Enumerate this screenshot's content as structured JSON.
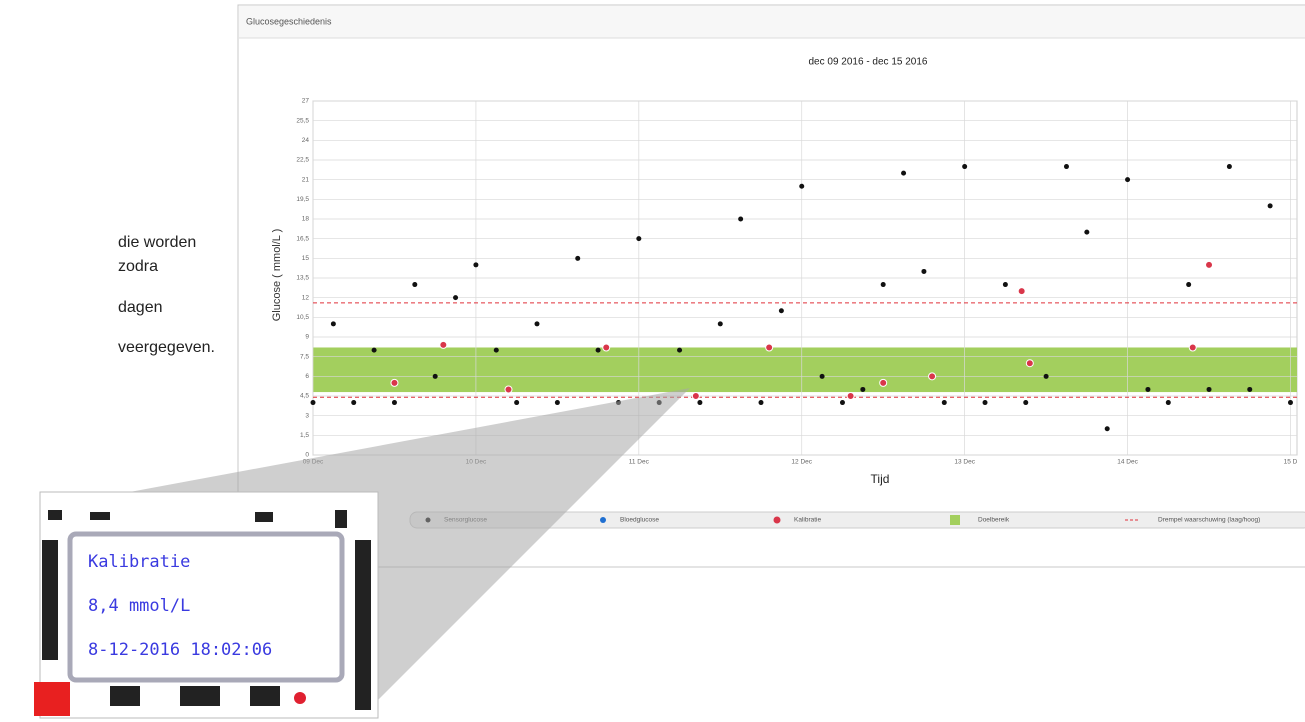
{
  "side_text": [
    "die worden",
    "zodra",
    "dagen",
    "veergegeven."
  ],
  "panel": {
    "title": "Glucosegeschiedenis"
  },
  "chart_data": {
    "type": "scatter",
    "title": "dec 09 2016 - dec 15 2016",
    "x_label": "Tijd",
    "y_label": "Glucose ( mmol/L )",
    "x": [
      0,
      0.125,
      0.25,
      0.375,
      0.5,
      0.625,
      0.75,
      0.875,
      1,
      1.125,
      1.25,
      1.375,
      1.5,
      1.625,
      1.75,
      1.875,
      2,
      2.125,
      2.25,
      2.375,
      2.5,
      2.625,
      2.75,
      2.875,
      3,
      3.125,
      3.25,
      3.375,
      3.5,
      3.625,
      3.75,
      3.875,
      4,
      4.125,
      4.25,
      4.375,
      4.5,
      4.625,
      4.75,
      4.875,
      5,
      5.125,
      5.25,
      5.375,
      5.5,
      5.625,
      5.75,
      5.875,
      6
    ],
    "series": [
      {
        "name": "Sensorglucose",
        "color": "#111111",
        "values": [
          4,
          10,
          4,
          8,
          4,
          13,
          6,
          12,
          14.5,
          8,
          4,
          10,
          4,
          15,
          8,
          4,
          16.5,
          4,
          8,
          4,
          10,
          18,
          4,
          11,
          20.5,
          6,
          4,
          5,
          13,
          21.5,
          14,
          4,
          22,
          4,
          13,
          4,
          6,
          22,
          17,
          2,
          21,
          5,
          4,
          13,
          5,
          22,
          5,
          19,
          4
        ]
      },
      {
        "name": "Kalibratie",
        "color": "#d9364a",
        "x": [
          0.5,
          0.8,
          1.2,
          1.8,
          2.35,
          2.8,
          3.3,
          3.5,
          3.8,
          4.35,
          4.4,
          5.4,
          5.5
        ],
        "values": [
          5.5,
          8.4,
          5,
          8.2,
          4.5,
          8.2,
          4.5,
          5.5,
          6,
          12.5,
          7,
          8.2,
          14.5
        ]
      }
    ],
    "blood_glucose_legend": "Bloedglucose",
    "target_range": {
      "name": "Doelbereik",
      "range": [
        4.8,
        8.2
      ],
      "color": "#a3cf5e"
    },
    "thresholds": {
      "name": "Drempel waarschuwing (laag/hoog)",
      "values": [
        4.4,
        11.6
      ],
      "color": "#e0303a"
    },
    "xlim": [
      0,
      6.04
    ],
    "xticks": [
      {
        "value": 0,
        "label": "09 Dec"
      },
      {
        "value": 1,
        "label": "10 Dec"
      },
      {
        "value": 2,
        "label": "11 Dec"
      },
      {
        "value": 3,
        "label": "12 Dec"
      },
      {
        "value": 4,
        "label": "13 Dec"
      },
      {
        "value": 5,
        "label": "14 Dec"
      },
      {
        "value": 6,
        "label": "15 D"
      }
    ],
    "ylim": [
      0,
      27
    ],
    "yticks": [
      0,
      {
        "value": 1.5,
        "label": "1,5"
      },
      3,
      {
        "value": 4.5,
        "label": "4,5"
      },
      6,
      {
        "value": 7.5,
        "label": "7,5"
      },
      9,
      {
        "value": 10.5,
        "label": "10,5"
      },
      12,
      {
        "value": 13.5,
        "label": "13,5"
      },
      15,
      {
        "value": 16.5,
        "label": "16,5"
      },
      18,
      {
        "value": 19.5,
        "label": "19,5"
      },
      21,
      {
        "value": 22.5,
        "label": "22,5"
      },
      24,
      {
        "value": 25.5,
        "label": "25,5"
      },
      27
    ],
    "grid": true
  },
  "tooltip": {
    "title": "Kalibratie",
    "value": "8,4 mmol/L",
    "time": "8-12-2016 18:02:06"
  }
}
